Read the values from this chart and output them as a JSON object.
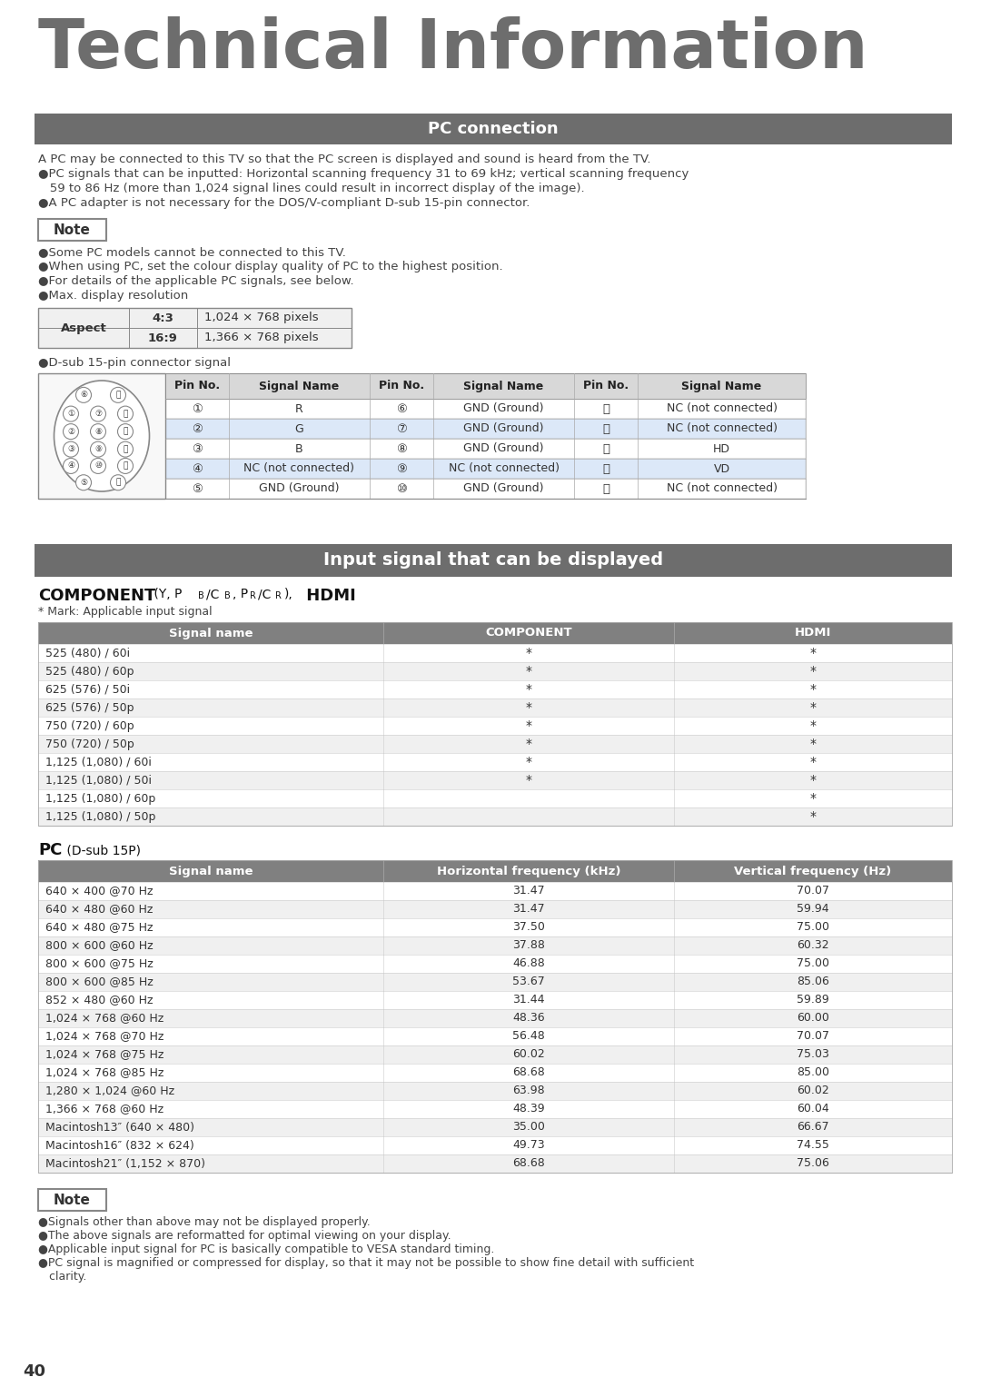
{
  "title": "Technical Information",
  "title_color": "#6d6d6d",
  "bg_color": "#ffffff",
  "section1_header": "PC connection",
  "section2_header": "Input signal that can be displayed",
  "header_bg": "#6d6d6d",
  "header_text_color": "#ffffff",
  "intro_lines": [
    "A PC may be connected to this TV so that the PC screen is displayed and sound is heard from the TV.",
    "●PC signals that can be inputted: Horizontal scanning frequency 31 to 69 kHz; vertical scanning frequency",
    "   59 to 86 Hz (more than 1,024 signal lines could result in incorrect display of the image).",
    "●A PC adapter is not necessary for the DOS/V-compliant D-sub 15-pin connector."
  ],
  "note_lines": [
    "●Some PC models cannot be connected to this TV.",
    "●When using PC, set the colour display quality of PC to the highest position.",
    "●For details of the applicable PC signals, see below.",
    "●Max. display resolution"
  ],
  "aspect_rows": [
    [
      "4:3",
      "1,024 × 768 pixels"
    ],
    [
      "16:9",
      "1,366 × 768 pixels"
    ]
  ],
  "dsub_label": "●D-sub 15-pin connector signal",
  "dsub_headers": [
    "Pin No.",
    "Signal Name",
    "Pin No.",
    "Signal Name",
    "Pin No.",
    "Signal Name"
  ],
  "dsub_rows": [
    [
      "①",
      "R",
      "⑥",
      "GND (Ground)",
      "⑰",
      "NC (not connected)"
    ],
    [
      "②",
      "G",
      "⑦",
      "GND (Ground)",
      "⑱",
      "NC (not connected)"
    ],
    [
      "③",
      "B",
      "⑧",
      "GND (Ground)",
      "⑲",
      "HD"
    ],
    [
      "④",
      "NC (not connected)",
      "⑨",
      "NC (not connected)",
      "⑳",
      "VD"
    ],
    [
      "⑤",
      "GND (Ground)",
      "⑩",
      "GND (Ground)",
      "⑴",
      "NC (not connected)"
    ]
  ],
  "mark_note": "* Mark: Applicable input signal",
  "component_headers": [
    "Signal name",
    "COMPONENT",
    "HDMI"
  ],
  "component_rows": [
    [
      "525 (480) / 60i",
      "*",
      "*"
    ],
    [
      "525 (480) / 60p",
      "*",
      "*"
    ],
    [
      "625 (576) / 50i",
      "*",
      "*"
    ],
    [
      "625 (576) / 50p",
      "*",
      "*"
    ],
    [
      "750 (720) / 60p",
      "*",
      "*"
    ],
    [
      "750 (720) / 50p",
      "*",
      "*"
    ],
    [
      "1,125 (1,080) / 60i",
      "*",
      "*"
    ],
    [
      "1,125 (1,080) / 50i",
      "*",
      "*"
    ],
    [
      "1,125 (1,080) / 60p",
      "",
      "*"
    ],
    [
      "1,125 (1,080) / 50p",
      "",
      "*"
    ]
  ],
  "pc_headers": [
    "Signal name",
    "Horizontal frequency (kHz)",
    "Vertical frequency (Hz)"
  ],
  "pc_rows": [
    [
      "640 × 400 @70 Hz",
      "31.47",
      "70.07"
    ],
    [
      "640 × 480 @60 Hz",
      "31.47",
      "59.94"
    ],
    [
      "640 × 480 @75 Hz",
      "37.50",
      "75.00"
    ],
    [
      "800 × 600 @60 Hz",
      "37.88",
      "60.32"
    ],
    [
      "800 × 600 @75 Hz",
      "46.88",
      "75.00"
    ],
    [
      "800 × 600 @85 Hz",
      "53.67",
      "85.06"
    ],
    [
      "852 × 480 @60 Hz",
      "31.44",
      "59.89"
    ],
    [
      "1,024 × 768 @60 Hz",
      "48.36",
      "60.00"
    ],
    [
      "1,024 × 768 @70 Hz",
      "56.48",
      "70.07"
    ],
    [
      "1,024 × 768 @75 Hz",
      "60.02",
      "75.03"
    ],
    [
      "1,024 × 768 @85 Hz",
      "68.68",
      "85.00"
    ],
    [
      "1,280 × 1,024 @60 Hz",
      "63.98",
      "60.02"
    ],
    [
      "1,366 × 768 @60 Hz",
      "48.39",
      "60.04"
    ],
    [
      "Macintosh13″ (640 × 480)",
      "35.00",
      "66.67"
    ],
    [
      "Macintosh16″ (832 × 624)",
      "49.73",
      "74.55"
    ],
    [
      "Macintosh21″ (1,152 × 870)",
      "68.68",
      "75.06"
    ]
  ],
  "bottom_note_lines": [
    "●Signals other than above may not be displayed properly.",
    "●The above signals are reformatted for optimal viewing on your display.",
    "●Applicable input signal for PC is basically compatible to VESA standard timing.",
    "●PC signal is magnified or compressed for display, so that it may not be possible to show fine detail with sufficient",
    "   clarity."
  ],
  "page_number": "40"
}
